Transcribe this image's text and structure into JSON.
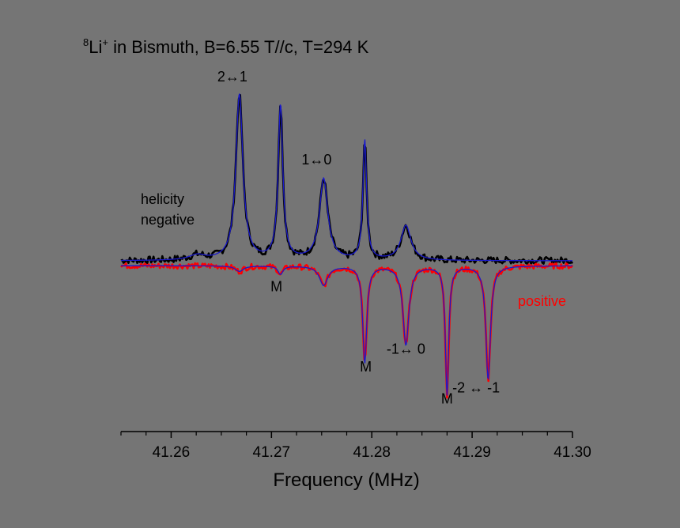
{
  "chart_data": {
    "type": "line",
    "title_sup": "8",
    "title_main": "Li",
    "title_charge": "+",
    "title_rest": " in Bismuth, B=6.55 T//c, T=294 K",
    "xlabel": "Frequency (MHz)",
    "ylabel": "",
    "xlim": [
      41.255,
      41.3
    ],
    "ylim": [
      -1.0,
      1.0
    ],
    "x_ticks": [
      41.26,
      41.27,
      41.28,
      41.29,
      41.3
    ],
    "x_tick_labels": [
      "41.26",
      "41.27",
      "41.28",
      "41.29",
      "41.30"
    ],
    "series": [
      {
        "name": "negative",
        "color": "#000000",
        "baseline": 0.0,
        "noise": 0.022,
        "peaks": [
          {
            "x": 41.2668,
            "amp": 1.0,
            "width": 0.00042
          },
          {
            "x": 41.2709,
            "amp": 0.93,
            "width": 0.00028
          },
          {
            "x": 41.2752,
            "amp": 0.49,
            "width": 0.0005
          },
          {
            "x": 41.2793,
            "amp": 0.72,
            "width": 0.00022
          },
          {
            "x": 41.2834,
            "amp": 0.21,
            "width": 0.0006
          },
          {
            "x": 41.2626,
            "amp": 0.03,
            "width": 0.001
          }
        ]
      },
      {
        "name": "positive",
        "color": "#ff0000",
        "baseline": -0.035,
        "noise": 0.02,
        "peaks": [
          {
            "x": 41.2668,
            "amp": -0.04,
            "width": 0.0005
          },
          {
            "x": 41.2709,
            "amp": -0.06,
            "width": 0.0003
          },
          {
            "x": 41.2752,
            "amp": -0.14,
            "width": 0.0005
          },
          {
            "x": 41.2793,
            "amp": -0.7,
            "width": 0.00024
          },
          {
            "x": 41.2834,
            "amp": -0.57,
            "width": 0.00036
          },
          {
            "x": 41.2875,
            "amp": -0.93,
            "width": 0.0002
          },
          {
            "x": 41.2916,
            "amp": -0.82,
            "width": 0.00028
          }
        ]
      }
    ],
    "fit_color": "#1a1acc",
    "annotations": [
      {
        "text": "2↔1",
        "x": 41.2661,
        "y": 1.08
      },
      {
        "text": "1↔0",
        "x": 41.2745,
        "y": 0.58
      },
      {
        "text": "M",
        "x": 41.2705,
        "y": -0.22
      },
      {
        "text": "M",
        "x": 41.2794,
        "y": -0.8
      },
      {
        "text": "-1↔ 0",
        "x": 41.2834,
        "y": -0.67
      },
      {
        "text": "M",
        "x": 41.2875,
        "y": -1.03
      },
      {
        "text": "-2 ↔ -1",
        "x": 41.2904,
        "y": -0.95
      }
    ],
    "helicity_label_1": "helicity",
    "helicity_label_2": "negative",
    "positive_label": "positive"
  },
  "colors": {
    "background": "#757575",
    "axis": "#000000",
    "positive_label": "#ff0000"
  }
}
